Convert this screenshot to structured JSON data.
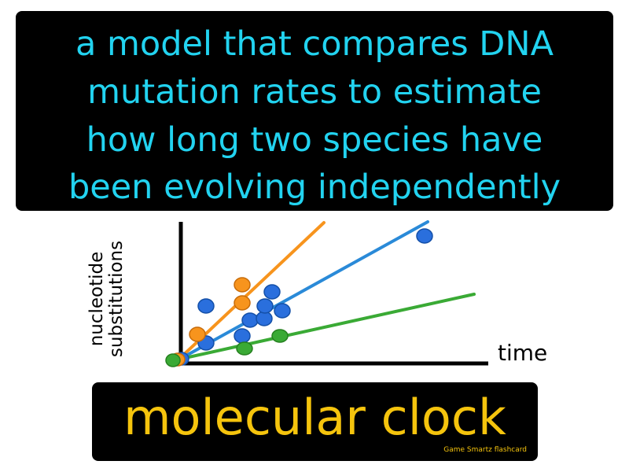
{
  "definition": {
    "lines": [
      "a model that compares DNA",
      "mutation rates to estimate",
      "how long two species have",
      "been evolving independently"
    ]
  },
  "diagram": {
    "y_label_lines": [
      "nucleotide",
      "substitutions"
    ],
    "x_label": "time",
    "colors": {
      "axis": "#000000",
      "orange": "#f7941d",
      "blue": "#2a8ad8",
      "green": "#3aaa35"
    }
  },
  "term": "molecular clock",
  "brand": "Game Smartz  flashcard",
  "colors": {
    "definition_text": "#22d3f0",
    "term_text": "#f5c40d",
    "background_panel": "#000000"
  }
}
